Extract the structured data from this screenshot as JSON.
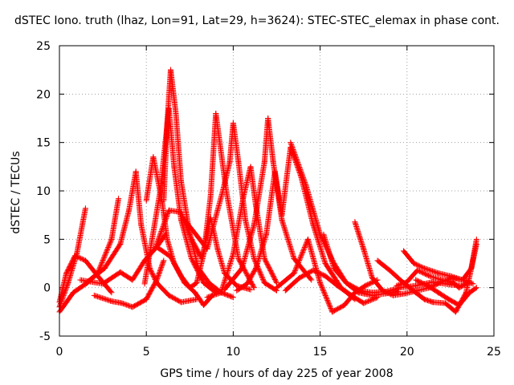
{
  "chart_data": {
    "type": "scatter",
    "title": "dSTEC Iono. truth (lhaz, Lon=91, Lat=29, h=3624): STEC-STEC_elemax in phase cont.",
    "xlabel": "GPS time / hours of day 225 of year 2008",
    "ylabel": "dSTEC  / TECUs",
    "xlim": [
      0,
      25
    ],
    "ylim": [
      -5,
      25
    ],
    "xticks": [
      0,
      5,
      10,
      15,
      20,
      25
    ],
    "yticks": [
      -5,
      0,
      5,
      10,
      15,
      20,
      25
    ],
    "grid": true,
    "marker": "+",
    "color": "#ff0000",
    "series": [
      {
        "x": [
          0.0,
          0.5,
          1.0,
          1.5
        ],
        "y": [
          -2.0,
          0.5,
          3.5,
          8.2
        ]
      },
      {
        "x": [
          0.0,
          0.4,
          0.9,
          1.5,
          2.3,
          3.0
        ],
        "y": [
          -1.5,
          1.5,
          3.3,
          2.8,
          1.0,
          -0.5
        ]
      },
      {
        "x": [
          0.0,
          0.8,
          1.6,
          2.2,
          3.0,
          3.4
        ],
        "y": [
          -2.5,
          -0.5,
          0.5,
          1.5,
          5.0,
          9.2
        ]
      },
      {
        "x": [
          1.2,
          2.5,
          3.5,
          4.2,
          4.9,
          5.6,
          6.1
        ],
        "y": [
          0.8,
          0.4,
          1.6,
          0.8,
          2.8,
          4.2,
          5.5
        ]
      },
      {
        "x": [
          1.6,
          2.6,
          3.5,
          4.0,
          4.4,
          4.7,
          5.2,
          5.6,
          6.3,
          7.0,
          7.9
        ],
        "y": [
          0.6,
          2.0,
          4.5,
          8.0,
          12.0,
          6.5,
          2.0,
          0.5,
          -0.8,
          -1.5,
          -1.2
        ]
      },
      {
        "x": [
          2.0,
          3.0,
          3.6,
          4.2,
          5.0,
          5.6,
          6.0
        ],
        "y": [
          -0.8,
          -1.4,
          -1.6,
          -2.0,
          -1.2,
          0.8,
          2.8
        ]
      },
      {
        "x": [
          5.0,
          5.4,
          5.9,
          6.2,
          6.6,
          7.2,
          7.8,
          8.3,
          8.8
        ],
        "y": [
          9.0,
          13.5,
          9.0,
          5.0,
          2.5,
          0.5,
          -0.5,
          -1.8,
          -0.8
        ]
      },
      {
        "x": [
          4.9,
          5.8,
          6.3,
          6.6,
          7.0,
          7.6,
          8.3,
          9.0
        ],
        "y": [
          0.4,
          10.0,
          18.5,
          12.5,
          7.0,
          3.0,
          0.5,
          -0.5
        ]
      },
      {
        "x": [
          6.0,
          6.2,
          6.4,
          6.7,
          7.0,
          7.5,
          8.0,
          8.6,
          9.3,
          10.0
        ],
        "y": [
          9.0,
          17.0,
          22.5,
          18.0,
          11.0,
          5.5,
          2.0,
          0.5,
          -0.5,
          -1.0
        ]
      },
      {
        "x": [
          5.5,
          6.3,
          7.0,
          7.6,
          8.2,
          8.7,
          9.1,
          9.5,
          10.2,
          11.0
        ],
        "y": [
          4.0,
          8.0,
          7.8,
          5.0,
          3.0,
          7.2,
          4.0,
          1.5,
          0.2,
          -0.2
        ]
      },
      {
        "x": [
          5.6,
          6.4,
          7.0,
          7.5,
          7.9,
          8.3,
          8.7,
          9.0,
          9.6,
          10.3,
          11.2
        ],
        "y": [
          4.2,
          3.2,
          1.2,
          0.0,
          0.5,
          3.5,
          9.5,
          18.0,
          10.0,
          3.0,
          0.0
        ]
      },
      {
        "x": [
          7.2,
          8.5,
          9.4,
          9.8,
          10.0,
          10.3,
          10.7,
          11.2,
          11.8,
          12.5
        ],
        "y": [
          7.0,
          4.0,
          10.0,
          13.0,
          17.0,
          13.0,
          7.0,
          3.0,
          0.5,
          -0.3
        ]
      },
      {
        "x": [
          8.5,
          9.3,
          10.0,
          10.6,
          11.0,
          11.3,
          11.8,
          12.5
        ],
        "y": [
          -1.0,
          -0.5,
          3.5,
          9.5,
          12.5,
          8.5,
          3.0,
          0.5
        ]
      },
      {
        "x": [
          9.5,
          10.5,
          11.2,
          11.8,
          12.0,
          12.3,
          12.8,
          13.5,
          14.5
        ],
        "y": [
          -0.2,
          2.0,
          6.5,
          13.0,
          17.5,
          13.0,
          7.0,
          3.0,
          0.8
        ]
      },
      {
        "x": [
          10.2,
          10.8,
          11.3,
          11.9,
          12.4,
          12.8,
          13.3,
          13.9,
          14.6,
          15.3,
          16.2,
          17.0
        ],
        "y": [
          -0.3,
          0.4,
          2.0,
          5.5,
          12.0,
          7.5,
          14.5,
          11.5,
          6.5,
          2.5,
          0.0,
          -1.2
        ]
      },
      {
        "x": [
          12.5,
          13.5,
          14.3,
          15.0,
          15.7,
          16.4,
          17.0,
          17.6,
          18.3
        ],
        "y": [
          0.0,
          1.5,
          5.0,
          0.5,
          -2.5,
          -1.8,
          -0.5,
          0.2,
          0.8
        ]
      },
      {
        "x": [
          13.3,
          14.2,
          15.0,
          15.8,
          16.5,
          17.2,
          18.0,
          18.8,
          19.5
        ],
        "y": [
          15.0,
          10.5,
          5.5,
          2.5,
          0.5,
          -0.5,
          -0.8,
          -0.6,
          -0.4
        ]
      },
      {
        "x": [
          15.2,
          15.8,
          16.5,
          17.3,
          18.0,
          18.8,
          19.6,
          20.5,
          21.5,
          22.5,
          23.2
        ],
        "y": [
          5.5,
          2.0,
          0.5,
          -0.3,
          -0.5,
          -0.4,
          0.0,
          0.2,
          0.6,
          0.3,
          0.2
        ]
      },
      {
        "x": [
          13.0,
          13.8,
          14.6,
          15.3,
          16.0,
          16.8,
          17.5,
          18.3
        ],
        "y": [
          -0.3,
          1.0,
          1.8,
          1.2,
          0.2,
          -0.8,
          -1.6,
          -1.0
        ]
      },
      {
        "x": [
          17.0,
          17.5,
          18.0,
          18.6,
          19.2,
          19.9,
          20.6,
          21.3,
          22.0,
          22.6,
          23.2,
          23.8
        ],
        "y": [
          6.8,
          4.0,
          1.0,
          -0.3,
          -0.8,
          -0.6,
          -0.3,
          0.0,
          0.6,
          1.0,
          0.8,
          0.4
        ]
      },
      {
        "x": [
          19.8,
          20.4,
          21.0,
          21.8,
          22.5,
          23.2,
          23.7,
          24.0
        ],
        "y": [
          3.8,
          2.5,
          2.0,
          1.5,
          1.2,
          0.8,
          2.0,
          5.0
        ]
      },
      {
        "x": [
          19.4,
          20.0,
          20.6,
          21.3,
          22.0,
          22.6,
          23.0,
          23.5
        ],
        "y": [
          0.2,
          0.6,
          1.8,
          1.2,
          0.8,
          0.6,
          0.0,
          0.5
        ]
      },
      {
        "x": [
          18.3,
          19.0,
          19.8,
          20.5,
          21.0,
          21.5,
          22.2,
          22.8,
          23.4,
          24.0
        ],
        "y": [
          2.8,
          1.8,
          0.5,
          -0.5,
          -1.2,
          -1.5,
          -1.6,
          -2.5,
          -0.5,
          4.5
        ]
      },
      {
        "x": [
          20.5,
          21.2,
          21.8,
          22.4,
          23.0,
          23.6,
          24.0
        ],
        "y": [
          0.8,
          0.2,
          -0.5,
          -1.2,
          -1.8,
          -0.5,
          0.0
        ]
      }
    ]
  }
}
